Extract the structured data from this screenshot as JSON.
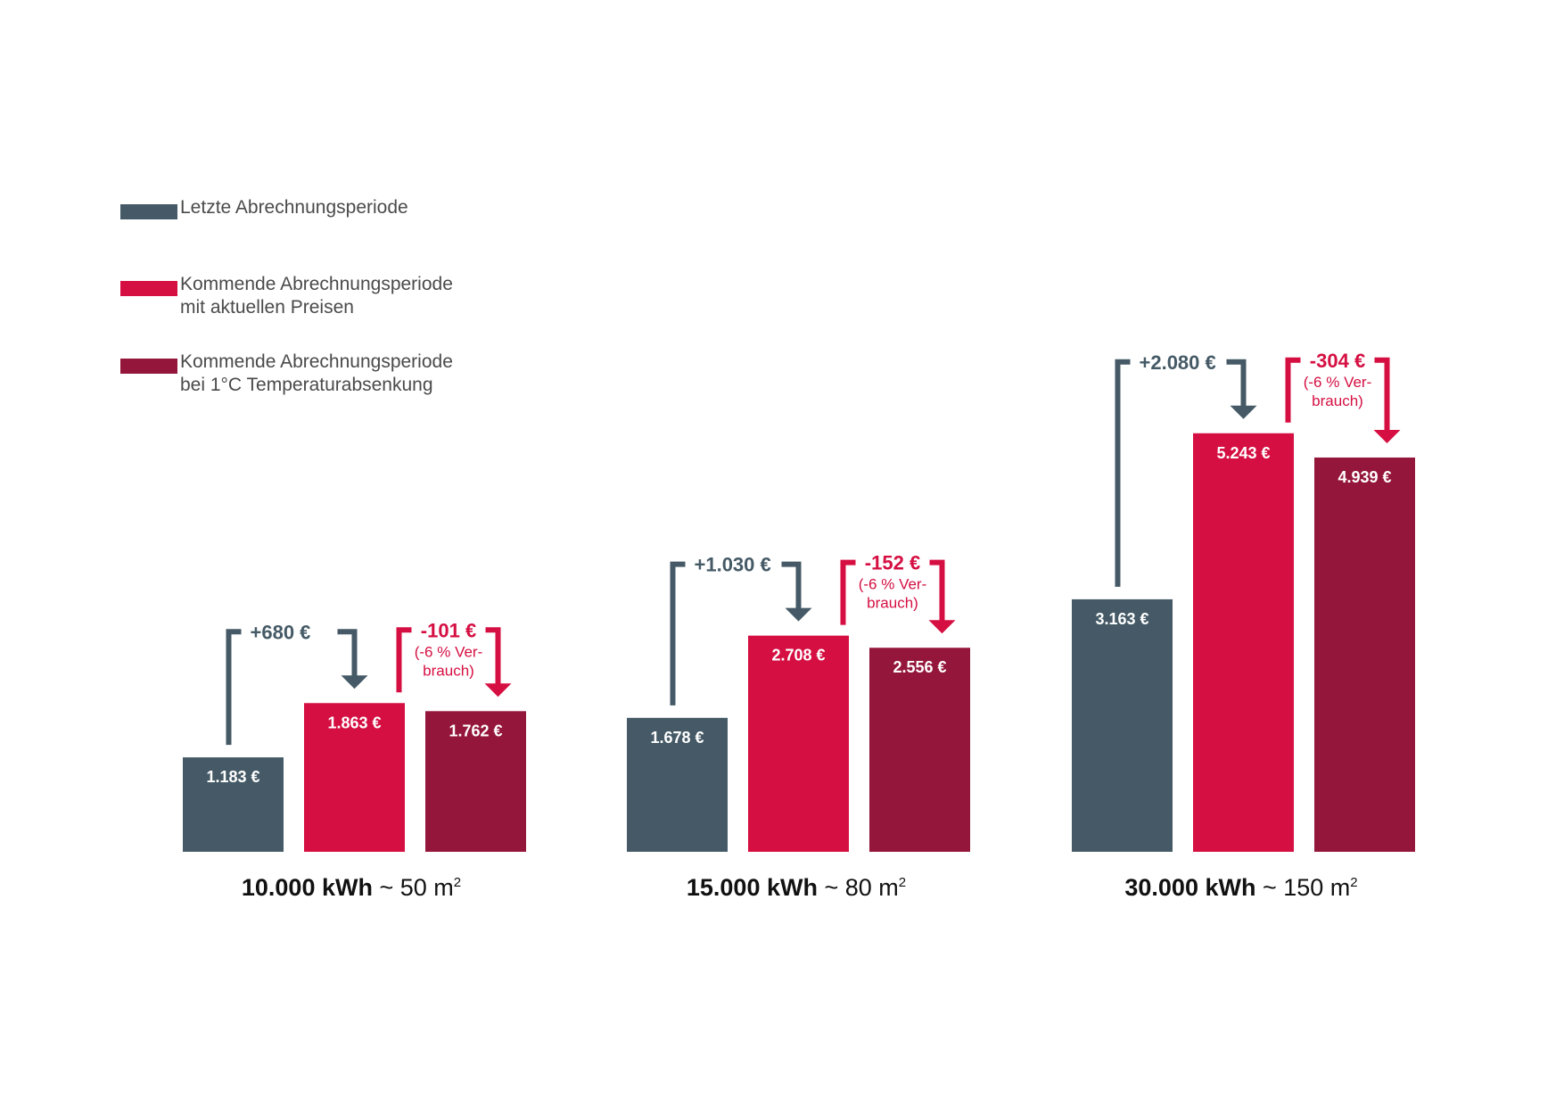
{
  "colors": {
    "last": "#455a66",
    "next": "#d50f42",
    "next_reduced": "#94163b"
  },
  "legend": [
    {
      "lines": [
        "Letzte Abrechnungsperiode"
      ],
      "color": "#455a66"
    },
    {
      "lines": [
        "Kommende Abrechnungsperiode",
        "mit aktuellen Preisen"
      ],
      "color": "#d50f42"
    },
    {
      "lines": [
        "Kommende Abrechnungsperiode",
        "bei 1°C Temperaturabsenkung"
      ],
      "color": "#94163b"
    }
  ],
  "chart_data": {
    "type": "bar",
    "currency": "€",
    "series": [
      {
        "name": "Letzte Abrechnungsperiode",
        "color": "#455a66"
      },
      {
        "name": "Kommende Abrechnungsperiode mit aktuellen Preisen",
        "color": "#d50f42"
      },
      {
        "name": "Kommende Abrechnungsperiode bei 1°C Temperaturabsenkung",
        "color": "#94163b"
      }
    ],
    "groups": [
      {
        "kwh": "10.000 kWh",
        "approx": "~ 50 m",
        "unit_sup": "2",
        "values": [
          1183,
          1863,
          1762
        ],
        "labels": [
          "1.183 €",
          "1.863 €",
          "1.762 €"
        ],
        "increase": "+680 €",
        "decrease": "-101 €",
        "note": [
          "(-6 % Ver-",
          "brauch)"
        ]
      },
      {
        "kwh": "15.000 kWh",
        "approx": "~ 80 m",
        "unit_sup": "2",
        "values": [
          1678,
          2708,
          2556
        ],
        "labels": [
          "1.678 €",
          "2.708 €",
          "2.556 €"
        ],
        "increase": "+1.030 €",
        "decrease": "-152 €",
        "note": [
          "(-6 % Ver-",
          "brauch)"
        ]
      },
      {
        "kwh": "30.000 kWh",
        "approx": "~ 150 m",
        "unit_sup": "2",
        "values": [
          3163,
          5243,
          4939
        ],
        "labels": [
          "3.163 €",
          "5.243 €",
          "4.939 €"
        ],
        "increase": "+2.080 €",
        "decrease": "-304 €",
        "note": [
          "(-6 % Ver-",
          "brauch)"
        ]
      }
    ]
  }
}
